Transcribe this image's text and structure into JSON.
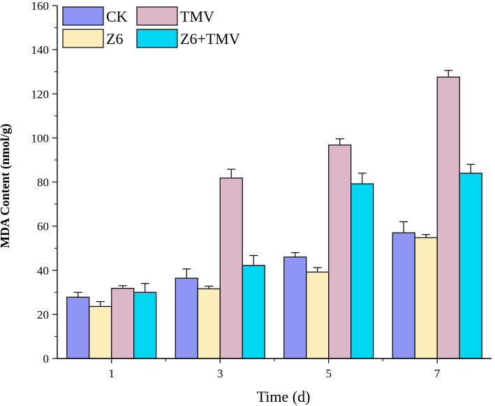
{
  "chart_data": {
    "type": "bar",
    "title": "",
    "xlabel": "Time (d)",
    "ylabel": "MDA Content (nmol/g)",
    "categories": [
      "1",
      "3",
      "5",
      "7"
    ],
    "ylim": [
      0,
      160
    ],
    "yticks": [
      "0",
      "20",
      "40",
      "60",
      "80",
      "100",
      "120",
      "140",
      "160"
    ],
    "legend_position": "top-left",
    "series": [
      {
        "name": "CK",
        "color": "#8f95f4",
        "values": [
          27.8,
          36.4,
          46.0,
          57.0
        ],
        "errors": [
          2.2,
          4.2,
          2.0,
          5.0
        ]
      },
      {
        "name": "Z6",
        "color": "#fcedbb",
        "values": [
          23.6,
          31.6,
          39.2,
          54.8
        ],
        "errors": [
          2.2,
          1.2,
          2.0,
          1.4
        ]
      },
      {
        "name": "TMV",
        "color": "#dbb7c7",
        "values": [
          31.8,
          81.8,
          96.8,
          127.6
        ],
        "errors": [
          1.2,
          4.0,
          2.8,
          3.0
        ]
      },
      {
        "name": "Z6+TMV",
        "color": "#00d5f2",
        "values": [
          30.0,
          42.2,
          79.2,
          84.0
        ],
        "errors": [
          4.0,
          4.5,
          4.8,
          4.0
        ]
      }
    ]
  }
}
